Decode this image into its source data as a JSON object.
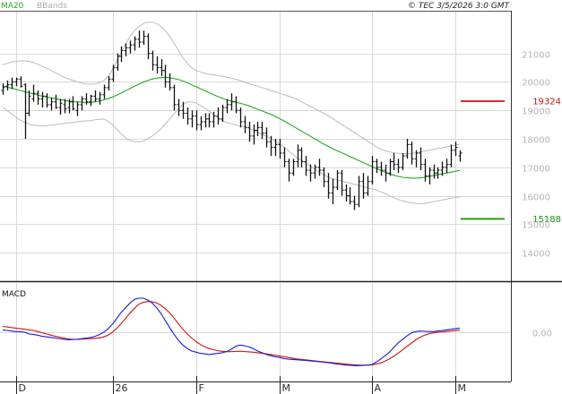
{
  "header": {
    "legend_ma": "MA20",
    "legend_bb": "BBands",
    "copyright": "© TEC 3/5/2026 3:0 GMT"
  },
  "colors": {
    "ma": "#22aa22",
    "bands": "#bbbbbb",
    "candle": "#111111",
    "resistance": "#cc1111",
    "support": "#119911",
    "macd_line": "#1a1acc",
    "signal_line": "#cc1111",
    "grid": "#d9d9d9"
  },
  "chart_data": [
    {
      "type": "line",
      "name": "price",
      "y_axis": {
        "ticks": [
          {
            "value": 14000,
            "label": "14000"
          },
          {
            "value": 15000,
            "label": "15000"
          },
          {
            "value": 16000,
            "label": "16000"
          },
          {
            "value": 17000,
            "label": "17000"
          },
          {
            "value": 18000,
            "label": "18000"
          },
          {
            "value": 19000,
            "label": "19000"
          },
          {
            "value": 20000,
            "label": "20000"
          },
          {
            "value": 21000,
            "label": "21000"
          }
        ],
        "range": [
          13000,
          22500
        ]
      },
      "x_axis": {
        "ticks": [
          {
            "index": 3,
            "label": "D"
          },
          {
            "index": 25,
            "label": "26"
          },
          {
            "index": 44,
            "label": "F"
          },
          {
            "index": 63,
            "label": "M"
          },
          {
            "index": 84,
            "label": "A"
          },
          {
            "index": 103,
            "label": "M"
          }
        ],
        "count": 105
      },
      "levels": [
        {
          "value": 19324,
          "label": "19324",
          "kind": "resistance"
        },
        {
          "value": 15188,
          "label": "15188",
          "kind": "support"
        }
      ],
      "candles": [
        [
          19700,
          19950,
          19550,
          19800
        ],
        [
          19850,
          20050,
          19700,
          19900
        ],
        [
          19900,
          20150,
          19750,
          20000
        ],
        [
          20000,
          20150,
          19850,
          20100
        ],
        [
          20100,
          20200,
          19800,
          19850
        ],
        [
          19900,
          19950,
          18000,
          18900
        ],
        [
          18900,
          19700,
          18800,
          19500
        ],
        [
          19400,
          19900,
          19300,
          19600
        ],
        [
          19600,
          19700,
          19200,
          19400
        ],
        [
          19400,
          19650,
          19100,
          19500
        ],
        [
          19500,
          19600,
          19100,
          19200
        ],
        [
          19200,
          19450,
          19000,
          19300
        ],
        [
          19300,
          19550,
          19050,
          19100
        ],
        [
          19100,
          19400,
          18850,
          19250
        ],
        [
          19200,
          19400,
          18900,
          19050
        ],
        [
          19100,
          19400,
          18900,
          19300
        ],
        [
          19300,
          19500,
          19000,
          19050
        ],
        [
          19000,
          19300,
          18800,
          19200
        ],
        [
          19200,
          19500,
          19000,
          19400
        ],
        [
          19400,
          19600,
          19200,
          19300
        ],
        [
          19300,
          19550,
          19150,
          19500
        ],
        [
          19500,
          19700,
          19300,
          19400
        ],
        [
          19400,
          19650,
          19200,
          19550
        ],
        [
          19550,
          19900,
          19400,
          19800
        ],
        [
          19800,
          20200,
          19700,
          20100
        ],
        [
          20100,
          20600,
          20000,
          20500
        ],
        [
          20500,
          21000,
          20400,
          20900
        ],
        [
          20900,
          21250,
          20700,
          21100
        ],
        [
          21100,
          21350,
          20900,
          21200
        ],
        [
          21200,
          21450,
          21000,
          21300
        ],
        [
          21300,
          21600,
          21100,
          21500
        ],
        [
          21500,
          21800,
          21200,
          21400
        ],
        [
          21400,
          21800,
          21300,
          21600
        ],
        [
          21600,
          21700,
          20800,
          21000
        ],
        [
          21000,
          21100,
          20400,
          20600
        ],
        [
          20600,
          20900,
          20300,
          20500
        ],
        [
          20500,
          20800,
          20200,
          20400
        ],
        [
          20400,
          20600,
          19800,
          20000
        ],
        [
          20000,
          20300,
          19700,
          19800
        ],
        [
          19800,
          19900,
          19000,
          19200
        ],
        [
          19200,
          19400,
          18800,
          19000
        ],
        [
          19000,
          19300,
          18700,
          18900
        ],
        [
          18900,
          19100,
          18500,
          18700
        ],
        [
          18700,
          19000,
          18400,
          18800
        ],
        [
          18800,
          19000,
          18300,
          18500
        ],
        [
          18500,
          18800,
          18300,
          18600
        ],
        [
          18600,
          18900,
          18400,
          18700
        ],
        [
          18700,
          18900,
          18400,
          18600
        ],
        [
          18600,
          18950,
          18400,
          18800
        ],
        [
          18800,
          19100,
          18500,
          18700
        ],
        [
          18700,
          19200,
          18600,
          19100
        ],
        [
          19100,
          19400,
          18900,
          19200
        ],
        [
          19200,
          19600,
          19000,
          19300
        ],
        [
          19300,
          19500,
          18900,
          19000
        ],
        [
          19000,
          19100,
          18400,
          18600
        ],
        [
          18600,
          18800,
          18200,
          18400
        ],
        [
          18400,
          18600,
          17900,
          18100
        ],
        [
          18100,
          18500,
          17800,
          18300
        ],
        [
          18300,
          18600,
          18100,
          18400
        ],
        [
          18400,
          18600,
          18000,
          18200
        ],
        [
          18200,
          18400,
          17700,
          17900
        ],
        [
          17900,
          18100,
          17400,
          17700
        ],
        [
          17700,
          18000,
          17400,
          17800
        ],
        [
          17800,
          18000,
          17300,
          17500
        ],
        [
          17500,
          17700,
          17000,
          17200
        ],
        [
          17200,
          17300,
          16500,
          16800
        ],
        [
          16800,
          17300,
          16700,
          17200
        ],
        [
          17200,
          17800,
          17000,
          17600
        ],
        [
          17600,
          17700,
          17000,
          17200
        ],
        [
          17200,
          17400,
          16700,
          16900
        ],
        [
          16900,
          17100,
          16500,
          16800
        ],
        [
          16800,
          17100,
          16600,
          17000
        ],
        [
          17000,
          17300,
          16700,
          16900
        ],
        [
          16900,
          17000,
          16300,
          16500
        ],
        [
          16500,
          16800,
          15900,
          16100
        ],
        [
          16100,
          16600,
          15700,
          16300
        ],
        [
          16300,
          16900,
          16200,
          16800
        ],
        [
          16800,
          16900,
          16000,
          16200
        ],
        [
          16200,
          16400,
          15800,
          16000
        ],
        [
          16000,
          16300,
          15700,
          15800
        ],
        [
          15800,
          16000,
          15500,
          15700
        ],
        [
          15700,
          16700,
          15600,
          16500
        ],
        [
          16500,
          16800,
          15900,
          16100
        ],
        [
          16100,
          16700,
          16000,
          16500
        ],
        [
          16500,
          17400,
          16400,
          17200
        ],
        [
          17200,
          17300,
          16800,
          17000
        ],
        [
          17000,
          17200,
          16700,
          16900
        ],
        [
          16900,
          17100,
          16500,
          16800
        ],
        [
          16800,
          17300,
          16700,
          17200
        ],
        [
          17200,
          17500,
          16900,
          17100
        ],
        [
          17100,
          17300,
          16800,
          17000
        ],
        [
          17000,
          17500,
          16900,
          17400
        ],
        [
          17400,
          18000,
          17300,
          17800
        ],
        [
          17800,
          17900,
          17100,
          17300
        ],
        [
          17300,
          17600,
          17000,
          17500
        ],
        [
          17500,
          17700,
          16900,
          17100
        ],
        [
          17100,
          17300,
          16500,
          16700
        ],
        [
          16700,
          17000,
          16400,
          16900
        ],
        [
          16900,
          17100,
          16600,
          16800
        ],
        [
          16800,
          17000,
          16600,
          16900
        ],
        [
          16900,
          17200,
          16700,
          17000
        ],
        [
          17000,
          17300,
          16800,
          17100
        ],
        [
          17100,
          17800,
          17000,
          17600
        ],
        [
          17600,
          17900,
          17400,
          17700
        ],
        [
          17400,
          17600,
          17200,
          17500
        ]
      ],
      "ma20": [
        19850,
        19820,
        19780,
        19740,
        19700,
        19660,
        19620,
        19580,
        19540,
        19500,
        19470,
        19440,
        19410,
        19380,
        19350,
        19330,
        19310,
        19300,
        19290,
        19280,
        19280,
        19300,
        19330,
        19370,
        19410,
        19470,
        19540,
        19610,
        19690,
        19770,
        19850,
        19920,
        19990,
        20050,
        20100,
        20130,
        20150,
        20160,
        20150,
        20120,
        20080,
        20030,
        19970,
        19900,
        19830,
        19760,
        19690,
        19620,
        19550,
        19480,
        19420,
        19370,
        19330,
        19290,
        19250,
        19210,
        19160,
        19100,
        19040,
        18980,
        18920,
        18860,
        18790,
        18710,
        18630,
        18540,
        18450,
        18360,
        18270,
        18180,
        18090,
        18000,
        17910,
        17820,
        17740,
        17660,
        17590,
        17520,
        17450,
        17380,
        17310,
        17240,
        17170,
        17100,
        17030,
        16960,
        16890,
        16830,
        16770,
        16720,
        16680,
        16650,
        16630,
        16620,
        16620,
        16630,
        16650,
        16680,
        16710,
        16740,
        16770,
        16800,
        16830,
        16860,
        16890
      ],
      "upper_band": [
        20600,
        20650,
        20700,
        20720,
        20740,
        20740,
        20720,
        20680,
        20620,
        20550,
        20480,
        20400,
        20320,
        20240,
        20160,
        20100,
        20050,
        20000,
        19960,
        19930,
        19920,
        19930,
        19970,
        20050,
        20200,
        20450,
        20750,
        21050,
        21350,
        21600,
        21800,
        21950,
        22050,
        22100,
        22100,
        22050,
        21950,
        21800,
        21600,
        21350,
        21100,
        20850,
        20650,
        20500,
        20400,
        20350,
        20300,
        20270,
        20250,
        20230,
        20200,
        20170,
        20130,
        20090,
        20050,
        20000,
        19950,
        19900,
        19850,
        19800,
        19750,
        19700,
        19650,
        19600,
        19550,
        19500,
        19450,
        19380,
        19300,
        19220,
        19140,
        19060,
        18980,
        18900,
        18820,
        18720,
        18620,
        18520,
        18420,
        18320,
        18220,
        18120,
        18020,
        17920,
        17820,
        17720,
        17640,
        17580,
        17540,
        17510,
        17490,
        17480,
        17480,
        17490,
        17510,
        17540,
        17570,
        17600,
        17630,
        17660,
        17690,
        17720,
        17750,
        17780,
        17810
      ],
      "lower_band": [
        19100,
        19000,
        18880,
        18760,
        18660,
        18580,
        18520,
        18480,
        18460,
        18450,
        18460,
        18480,
        18500,
        18520,
        18540,
        18560,
        18580,
        18600,
        18620,
        18630,
        18640,
        18670,
        18690,
        18690,
        18620,
        18490,
        18330,
        18170,
        18030,
        17940,
        17900,
        17890,
        17930,
        18000,
        18100,
        18210,
        18350,
        18520,
        18700,
        18890,
        19060,
        19210,
        19290,
        19300,
        19260,
        19170,
        19080,
        18970,
        18850,
        18730,
        18640,
        18570,
        18530,
        18490,
        18450,
        18420,
        18370,
        18300,
        18230,
        18160,
        18090,
        18020,
        17930,
        17820,
        17710,
        17580,
        17450,
        17340,
        17240,
        17140,
        17040,
        16940,
        16840,
        16740,
        16660,
        16600,
        16560,
        16520,
        16480,
        16440,
        16400,
        16360,
        16320,
        16280,
        16240,
        16200,
        16140,
        16080,
        16000,
        15930,
        15870,
        15820,
        15780,
        15750,
        15730,
        15720,
        15730,
        15760,
        15790,
        15820,
        15850,
        15880,
        15910,
        15940,
        15970
      ]
    },
    {
      "type": "line",
      "name": "MACD",
      "title": "MACD",
      "y_axis": {
        "ticks": [
          {
            "value": 0,
            "label": "0.00"
          }
        ],
        "range": [
          -420,
          420
        ]
      },
      "macd": [
        20,
        15,
        10,
        5,
        5,
        0,
        -15,
        -20,
        -25,
        -35,
        -40,
        -45,
        -50,
        -55,
        -60,
        -65,
        -62,
        -60,
        -55,
        -50,
        -45,
        -35,
        -20,
        0,
        30,
        70,
        120,
        170,
        210,
        250,
        280,
        290,
        290,
        275,
        250,
        210,
        160,
        100,
        40,
        -20,
        -70,
        -110,
        -140,
        -160,
        -170,
        -180,
        -185,
        -190,
        -185,
        -180,
        -175,
        -165,
        -145,
        -120,
        -110,
        -115,
        -125,
        -140,
        -160,
        -175,
        -190,
        -200,
        -210,
        -215,
        -225,
        -230,
        -232,
        -235,
        -238,
        -240,
        -245,
        -248,
        -252,
        -256,
        -260,
        -265,
        -270,
        -275,
        -280,
        -282,
        -285,
        -285,
        -283,
        -280,
        -275,
        -255,
        -230,
        -200,
        -170,
        -130,
        -90,
        -60,
        -30,
        -5,
        5,
        10,
        8,
        5,
        5,
        10,
        15,
        20,
        25,
        30,
        35
      ],
      "signal": [
        50,
        45,
        40,
        35,
        30,
        25,
        20,
        15,
        5,
        -5,
        -15,
        -25,
        -35,
        -42,
        -50,
        -58,
        -60,
        -60,
        -59,
        -57,
        -55,
        -52,
        -48,
        -40,
        -25,
        0,
        35,
        75,
        120,
        165,
        205,
        240,
        255,
        262,
        260,
        250,
        230,
        200,
        165,
        120,
        70,
        25,
        -15,
        -50,
        -80,
        -105,
        -125,
        -140,
        -150,
        -158,
        -163,
        -166,
        -166,
        -164,
        -162,
        -164,
        -167,
        -170,
        -175,
        -180,
        -185,
        -190,
        -197,
        -203,
        -209,
        -215,
        -222,
        -228,
        -232,
        -236,
        -240,
        -244,
        -248,
        -252,
        -256,
        -260,
        -264,
        -268,
        -272,
        -275,
        -278,
        -280,
        -281,
        -280,
        -278,
        -272,
        -262,
        -247,
        -228,
        -205,
        -178,
        -150,
        -120,
        -92,
        -65,
        -42,
        -25,
        -12,
        -5,
        0,
        3,
        6,
        10,
        14,
        18
      ]
    }
  ]
}
